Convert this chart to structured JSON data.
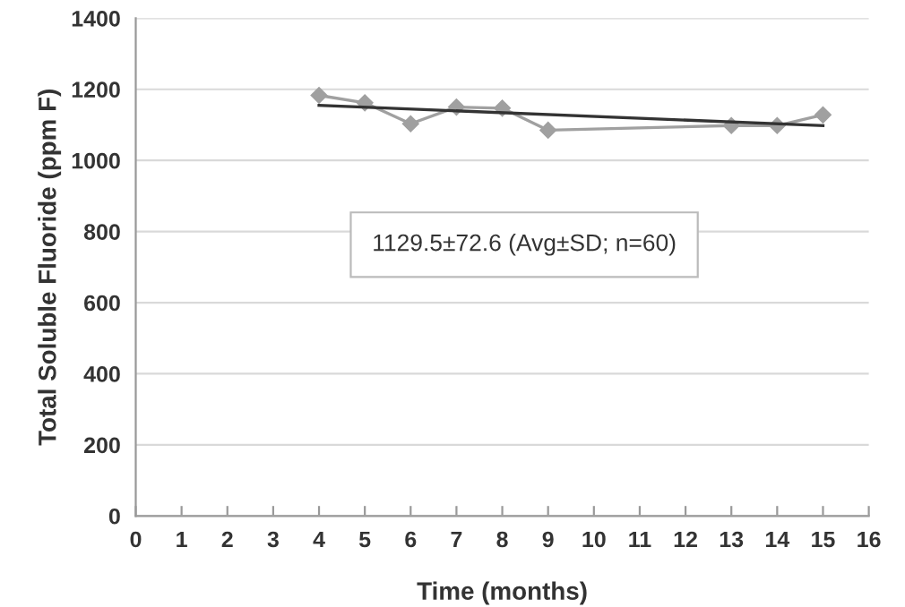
{
  "chart_data": {
    "type": "line",
    "xlabel": "Time (months)",
    "ylabel": "Total Soluble Fluoride (ppm F)",
    "series": [
      {
        "color": "#a0a0a0",
        "marker": "diamond",
        "x": [
          4,
          5,
          6,
          7,
          8,
          9,
          13,
          14,
          15
        ],
        "values": [
          1183,
          1162,
          1103,
          1150,
          1147,
          1085,
          1098,
          1098,
          1128
        ]
      },
      {
        "color": "#333333",
        "marker": "none",
        "x": [
          4,
          15
        ],
        "values": [
          1155,
          1098
        ]
      }
    ],
    "xlim": [
      0,
      16
    ],
    "xticks": [
      0,
      1,
      2,
      3,
      4,
      5,
      6,
      7,
      8,
      9,
      10,
      11,
      12,
      13,
      14,
      15,
      16
    ],
    "ylim": [
      0,
      1400
    ],
    "yticks": [
      0,
      200,
      400,
      600,
      800,
      1000,
      1200,
      1400
    ],
    "grid": "y",
    "legend": false,
    "annotations": [
      "1129.5±72.6 (Avg±SD; n=60)"
    ]
  }
}
